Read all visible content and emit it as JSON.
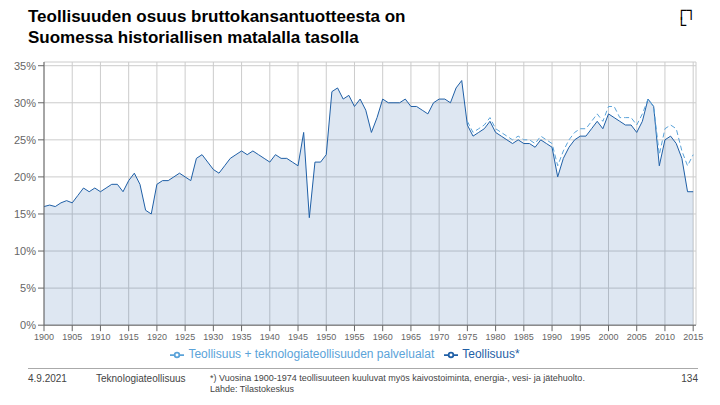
{
  "chart_data": {
    "type": "line",
    "title": "Teollisuuden osuus bruttokansantuotteesta on\nSuomessa historiallisen matalalla tasolla",
    "annotations": [
      "┌┐\n└",
      "4.9.2021",
      "Teknologiateollisuus",
      "*) Vuosina 1900-1974 teollisuuteen kuuluvat myös kaivostoiminta, energia-, vesi- ja jätehuolto.\nLähde: Tilastokeskus",
      "134"
    ],
    "x": [
      1900,
      1901,
      1902,
      1903,
      1904,
      1905,
      1906,
      1907,
      1908,
      1909,
      1910,
      1911,
      1912,
      1913,
      1914,
      1915,
      1916,
      1917,
      1918,
      1919,
      1920,
      1921,
      1922,
      1923,
      1924,
      1925,
      1926,
      1927,
      1928,
      1929,
      1930,
      1931,
      1932,
      1933,
      1934,
      1935,
      1936,
      1937,
      1938,
      1939,
      1940,
      1941,
      1942,
      1943,
      1944,
      1945,
      1946,
      1947,
      1948,
      1949,
      1950,
      1951,
      1952,
      1953,
      1954,
      1955,
      1956,
      1957,
      1958,
      1959,
      1960,
      1961,
      1962,
      1963,
      1964,
      1965,
      1966,
      1967,
      1968,
      1969,
      1970,
      1971,
      1972,
      1973,
      1974,
      1975,
      1976,
      1977,
      1978,
      1979,
      1980,
      1981,
      1982,
      1983,
      1984,
      1985,
      1986,
      1987,
      1988,
      1989,
      1990,
      1991,
      1992,
      1993,
      1994,
      1995,
      1996,
      1997,
      1998,
      1999,
      2000,
      2001,
      2002,
      2003,
      2004,
      2005,
      2006,
      2007,
      2008,
      2009,
      2010,
      2011,
      2012,
      2013,
      2014,
      2015
    ],
    "series": [
      {
        "name": "Teollisuus*",
        "type": "area",
        "color": "#1f5fa6",
        "line_style": "solid",
        "values": [
          16.0,
          16.2,
          16.0,
          16.5,
          16.8,
          16.5,
          17.5,
          18.5,
          18.0,
          18.5,
          18.0,
          18.5,
          19.0,
          19.0,
          18.0,
          19.5,
          20.5,
          19.0,
          15.5,
          15.0,
          19.0,
          19.5,
          19.5,
          20.0,
          20.5,
          20.0,
          19.5,
          22.5,
          23.0,
          22.0,
          21.0,
          20.5,
          21.5,
          22.5,
          23.0,
          23.5,
          23.0,
          23.5,
          23.0,
          22.5,
          22.0,
          23.0,
          22.5,
          22.5,
          22.0,
          21.5,
          26.0,
          14.5,
          22.0,
          22.0,
          23.0,
          31.5,
          32.0,
          30.5,
          31.0,
          29.5,
          30.5,
          29.0,
          26.0,
          28.0,
          30.5,
          30.0,
          30.0,
          30.0,
          30.5,
          29.5,
          29.5,
          29.0,
          28.5,
          30.0,
          30.5,
          30.5,
          30.0,
          32.0,
          33.0,
          27.0,
          25.5,
          26.0,
          26.5,
          27.5,
          26.0,
          25.5,
          25.0,
          24.5,
          25.0,
          24.5,
          24.5,
          24.0,
          25.0,
          24.5,
          24.0,
          20.0,
          22.5,
          24.0,
          25.0,
          25.5,
          25.5,
          26.5,
          27.5,
          26.5,
          28.5,
          28.0,
          27.5,
          27.0,
          27.0,
          26.0,
          27.5,
          30.5,
          29.5,
          21.5,
          25.0,
          25.5,
          24.5,
          22.5,
          18.0,
          18.0
        ]
      },
      {
        "name": "Teollisuus + teknologiateollisuuden palvelualat",
        "type": "line",
        "color": "#5ba3d9",
        "line_style": "dashed",
        "values": [
          null,
          null,
          null,
          null,
          null,
          null,
          null,
          null,
          null,
          null,
          null,
          null,
          null,
          null,
          null,
          null,
          null,
          null,
          null,
          null,
          null,
          null,
          null,
          null,
          null,
          null,
          null,
          null,
          null,
          null,
          null,
          null,
          null,
          null,
          null,
          null,
          null,
          null,
          null,
          null,
          null,
          null,
          null,
          null,
          null,
          null,
          null,
          null,
          null,
          null,
          null,
          null,
          null,
          null,
          null,
          null,
          null,
          null,
          null,
          null,
          null,
          null,
          null,
          null,
          null,
          null,
          null,
          null,
          null,
          null,
          null,
          null,
          null,
          null,
          null,
          27.5,
          26.0,
          26.5,
          27.0,
          28.0,
          26.5,
          26.0,
          25.5,
          25.0,
          25.5,
          25.0,
          25.0,
          24.5,
          25.5,
          25.0,
          24.5,
          21.5,
          23.5,
          25.0,
          26.0,
          26.5,
          26.5,
          27.5,
          28.5,
          27.5,
          29.5,
          29.5,
          28.0,
          28.0,
          28.0,
          27.0,
          28.5,
          30.5,
          29.5,
          23.0,
          26.5,
          27.0,
          26.5,
          23.5,
          21.5,
          23.0
        ]
      }
    ],
    "xlim": [
      1900,
      2015.5
    ],
    "xticks": [
      1900,
      1905,
      1910,
      1915,
      1920,
      1925,
      1930,
      1935,
      1940,
      1945,
      1950,
      1955,
      1960,
      1965,
      1970,
      1975,
      1980,
      1985,
      1990,
      1995,
      2000,
      2005,
      2010,
      2015
    ],
    "ylim": [
      0,
      35.5
    ],
    "yticks": [
      {
        "value": 0,
        "label": "0%"
      },
      {
        "value": 5,
        "label": "5%"
      },
      {
        "value": 10,
        "label": "10%"
      },
      {
        "value": 15,
        "label": "15%"
      },
      {
        "value": 20,
        "label": "20%"
      },
      {
        "value": 25,
        "label": "25%"
      },
      {
        "value": 30,
        "label": "30%"
      },
      {
        "value": 35,
        "label": "35%"
      }
    ],
    "grid": true,
    "legend": "bottom"
  }
}
